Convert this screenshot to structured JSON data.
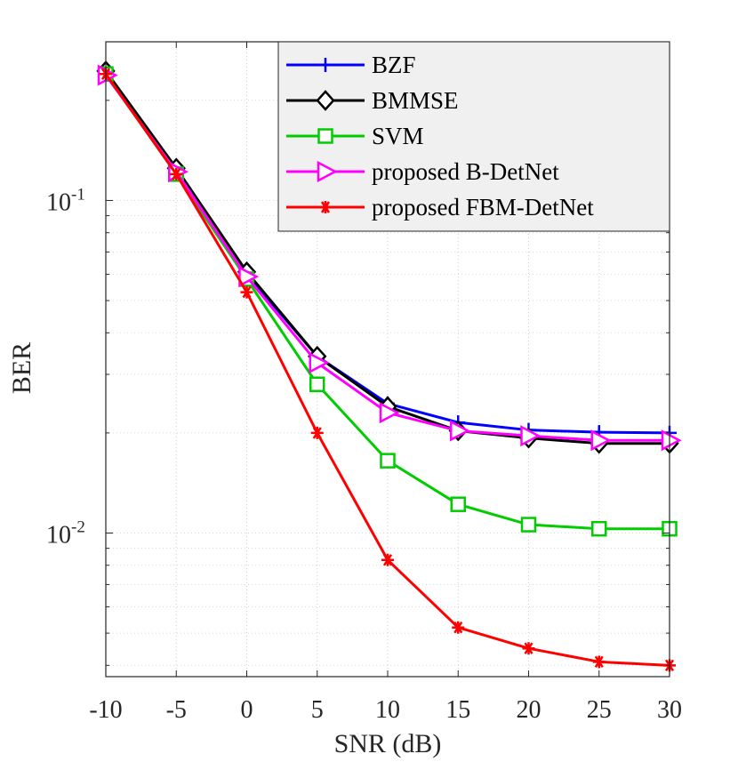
{
  "chart_data": {
    "type": "line",
    "title": "",
    "xlabel": "SNR (dB)",
    "ylabel": "BER",
    "x": [
      -10,
      -5,
      0,
      5,
      10,
      15,
      20,
      25,
      30
    ],
    "xlim": [
      -10,
      30
    ],
    "ylim": [
      0.0037,
      0.3
    ],
    "yscale": "log",
    "grid": true,
    "legend_position": "top-right",
    "x_tick_labels": [
      "-10",
      "-5",
      "0",
      "5",
      "10",
      "15",
      "20",
      "25",
      "30"
    ],
    "y_tick_labels": [
      {
        "base": "10",
        "exp": "-1",
        "value": 0.1
      },
      {
        "base": "10",
        "exp": "-2",
        "value": 0.01
      }
    ],
    "series": [
      {
        "name": "BZF",
        "color": "#0000ff",
        "marker": "plus",
        "values": [
          0.24,
          0.123,
          0.06,
          0.034,
          0.0245,
          0.0215,
          0.0204,
          0.0201,
          0.02
        ]
      },
      {
        "name": "BMMSE",
        "color": "#000000",
        "marker": "diamond",
        "values": [
          0.245,
          0.125,
          0.061,
          0.034,
          0.024,
          0.0203,
          0.0193,
          0.0186,
          0.0186
        ]
      },
      {
        "name": "SVM",
        "color": "#00cc00",
        "marker": "square",
        "values": [
          0.24,
          0.12,
          0.058,
          0.028,
          0.0165,
          0.0122,
          0.0106,
          0.0103,
          0.0103
        ]
      },
      {
        "name": "proposed B-DetNet",
        "color": "#ff00ff",
        "marker": "triangle-right",
        "values": [
          0.238,
          0.122,
          0.059,
          0.0325,
          0.023,
          0.0203,
          0.0196,
          0.019,
          0.019
        ]
      },
      {
        "name": "proposed FBM-DetNet",
        "color": "#ff0000",
        "marker": "asterisk",
        "values": [
          0.24,
          0.12,
          0.053,
          0.02,
          0.0083,
          0.0052,
          0.0045,
          0.0041,
          0.004
        ]
      }
    ]
  }
}
